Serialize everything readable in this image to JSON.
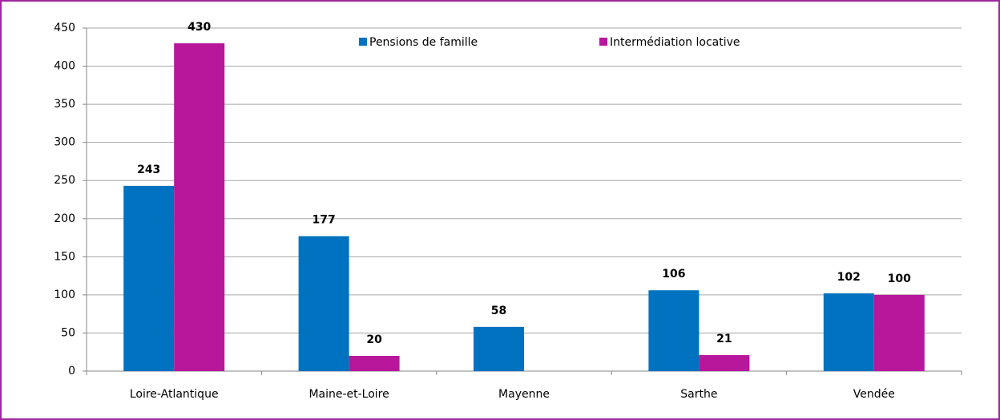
{
  "chart_data": {
    "type": "bar",
    "categories": [
      "Loire-Atlantique",
      "Maine-et-Loire",
      "Mayenne",
      "Sarthe",
      "Vendée"
    ],
    "series": [
      {
        "name": "Pensions de famille",
        "color": "#0072c0",
        "values": [
          243,
          177,
          58,
          106,
          102
        ]
      },
      {
        "name": "Intermédiation locative",
        "color": "#b8179c",
        "values": [
          430,
          20,
          null,
          21,
          100
        ]
      }
    ],
    "ylim": [
      0,
      450
    ],
    "yticks": [
      0,
      50,
      100,
      150,
      200,
      250,
      300,
      350,
      400,
      450
    ],
    "grid": true,
    "legend": "top"
  }
}
